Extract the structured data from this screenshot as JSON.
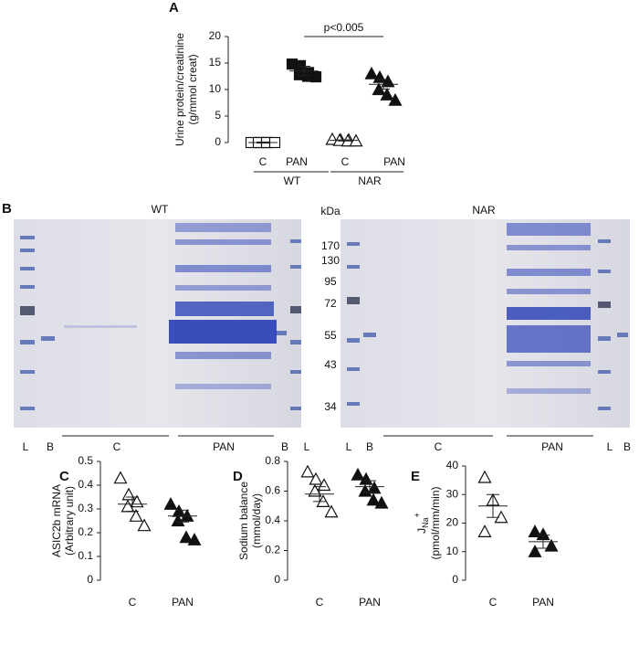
{
  "chart_data": [
    {
      "type": "dot",
      "panel": "A",
      "ylabel": [
        "Urine protein/creatinine",
        "(g/mmol creat)"
      ],
      "categories": [
        "C",
        "PAN",
        "C",
        "PAN"
      ],
      "markers": [
        "open-square",
        "square",
        "open-triangle",
        "triangle"
      ],
      "values": [
        [
          0,
          0,
          0,
          0,
          0,
          0
        ],
        [
          14.8,
          14.5,
          13.2,
          12.8,
          12.5,
          12.4
        ],
        [
          0.6,
          0.5,
          0.5,
          0.4,
          0.3,
          0.3
        ],
        [
          13,
          12.3,
          11.5,
          10,
          9,
          8
        ]
      ],
      "means": [
        0,
        13.5,
        0.4,
        11
      ],
      "sems": [
        0.1,
        0.9,
        0.1,
        0.9
      ],
      "groups": [
        "WT",
        "NAR"
      ],
      "annotation": "p<0.005",
      "ylim": [
        0,
        20
      ],
      "yticks": [
        0,
        5,
        10,
        15,
        20
      ]
    },
    {
      "type": "dot",
      "panel": "C",
      "ylabel": [
        "ASIC2b mRNA",
        "(Arbitrary unit)"
      ],
      "categories": [
        "C",
        "PAN"
      ],
      "markers": [
        "open-triangle",
        "triangle"
      ],
      "values": [
        [
          0.43,
          0.36,
          0.33,
          0.31,
          0.27,
          0.23
        ],
        [
          0.32,
          0.29,
          0.27,
          0.25,
          0.18,
          0.17
        ]
      ],
      "means": [
        0.32,
        0.27
      ],
      "sems": [
        0.03,
        0.025
      ],
      "ylim": [
        0,
        0.5
      ],
      "yticks": [
        0,
        0.1,
        0.2,
        0.3,
        0.4,
        0.5
      ]
    },
    {
      "type": "dot",
      "panel": "D",
      "ylabel": [
        "Sodium balance",
        "(mmol/day)"
      ],
      "categories": [
        "C",
        "PAN"
      ],
      "markers": [
        "open-triangle",
        "triangle"
      ],
      "values": [
        [
          0.73,
          0.68,
          0.64,
          0.6,
          0.53,
          0.46
        ],
        [
          0.71,
          0.68,
          0.62,
          0.6,
          0.54,
          0.52
        ]
      ],
      "means": [
        0.58,
        0.63
      ],
      "sems": [
        0.05,
        0.04
      ],
      "ylim": [
        0,
        0.8
      ],
      "yticks": [
        0,
        0.2,
        0.4,
        0.6,
        0.8
      ]
    },
    {
      "type": "dot",
      "panel": "E",
      "ylabel": [
        "(pmol/mm/min)"
      ],
      "ylabel_symbol": {
        "main": "J",
        "sub": "Na",
        "sup": "+"
      },
      "categories": [
        "C",
        "PAN"
      ],
      "markers": [
        "open-triangle",
        "triangle"
      ],
      "values": [
        [
          36,
          28,
          22,
          17
        ],
        [
          17,
          16,
          12,
          10
        ]
      ],
      "means": [
        26,
        13.5
      ],
      "sems": [
        4,
        2.3
      ],
      "ylim": [
        0,
        40
      ],
      "yticks": [
        0,
        10,
        20,
        30,
        40
      ]
    }
  ],
  "gel": {
    "panel": "B",
    "left_title": "WT",
    "right_title": "NAR",
    "unit": "kDa",
    "markers": [
      "170",
      "130",
      "95",
      "72",
      "55",
      "43",
      "34"
    ],
    "left_lanes": [
      "L",
      "B",
      "C",
      "PAN",
      "B",
      "L"
    ],
    "right_lanes": [
      "L",
      "B",
      "C",
      "PAN",
      "L",
      "B"
    ]
  }
}
